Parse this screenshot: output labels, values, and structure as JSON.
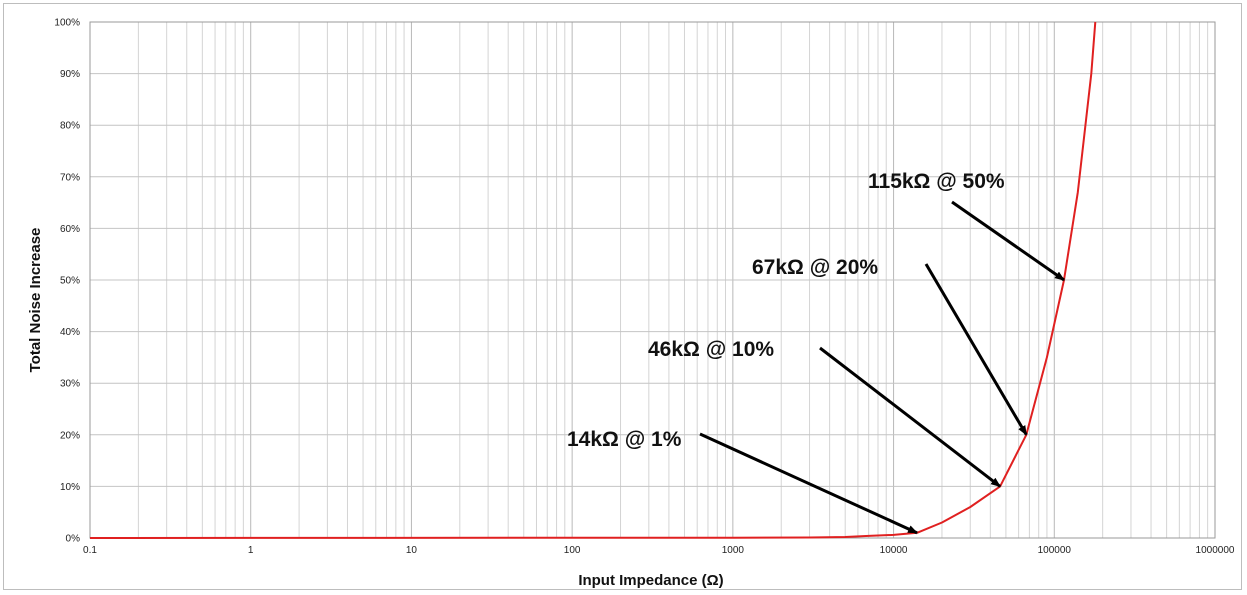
{
  "chart_data": {
    "type": "line",
    "title": "",
    "xlabel": "Input Impedance (Ω)",
    "ylabel": "Total Noise Increase",
    "x_scale": "log",
    "xlim": [
      0.1,
      1000000
    ],
    "ylim": [
      0,
      100
    ],
    "x_ticks": [
      "0.1",
      "1",
      "10",
      "100",
      "1000",
      "10000",
      "100000",
      "1000000"
    ],
    "y_ticks": [
      "0%",
      "10%",
      "20%",
      "30%",
      "40%",
      "50%",
      "60%",
      "70%",
      "80%",
      "90%",
      "100%"
    ],
    "grid": true,
    "legend": "none",
    "series": [
      {
        "color": "#e02020",
        "x": [
          0.1,
          1000,
          3000,
          5000,
          7000,
          10000,
          14000,
          20000,
          30000,
          46000,
          67000,
          90000,
          115000,
          140000,
          170000,
          180000
        ],
        "y": [
          0,
          0.05,
          0.1,
          0.2,
          0.4,
          0.6,
          1,
          3,
          6,
          10,
          20,
          35,
          50,
          67,
          90,
          100
        ]
      }
    ],
    "annotations": [
      {
        "text": "115kΩ @ 50%",
        "x": 115000,
        "y": 50
      },
      {
        "text": "67kΩ @ 20%",
        "x": 67000,
        "y": 20
      },
      {
        "text": "46kΩ @ 10%",
        "x": 46000,
        "y": 10
      },
      {
        "text": "14kΩ @ 1%",
        "x": 14000,
        "y": 1
      }
    ]
  }
}
